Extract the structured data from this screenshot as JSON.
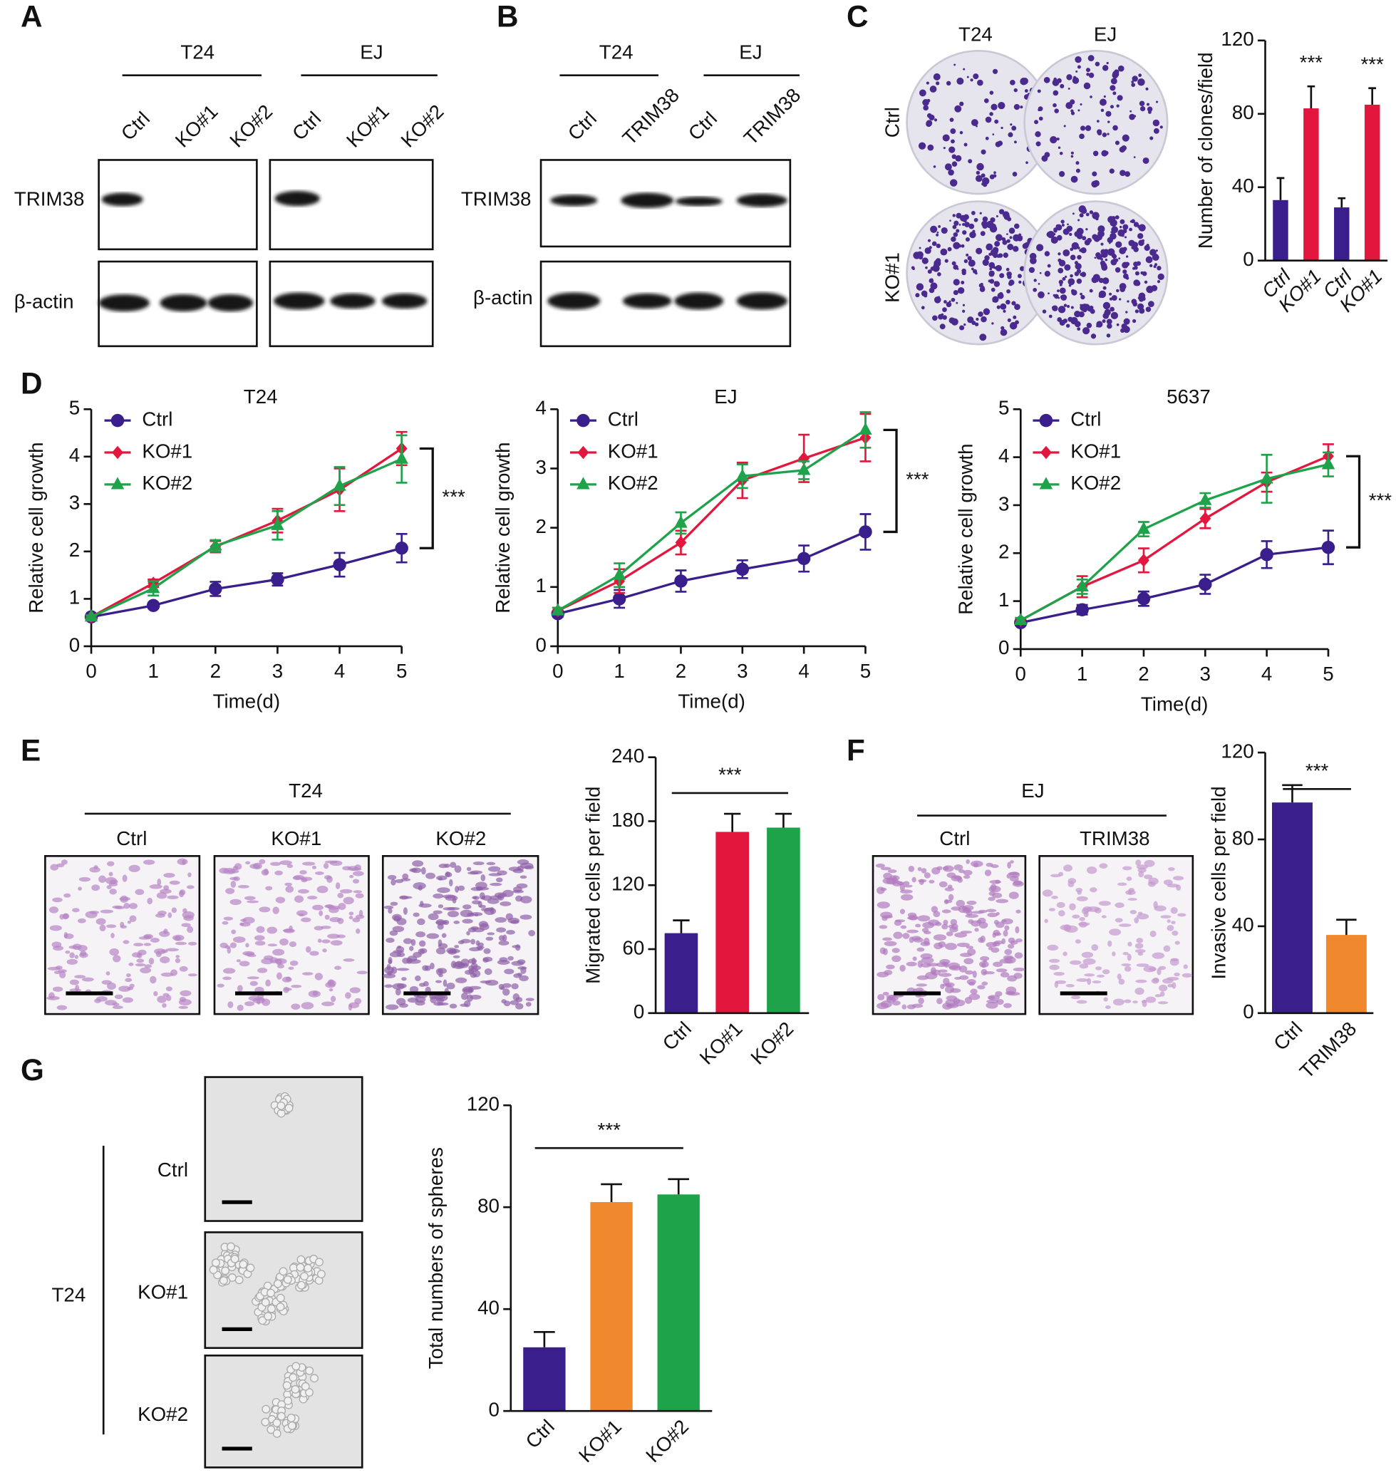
{
  "figure": {
    "letters": [
      "A",
      "B",
      "C",
      "D",
      "E",
      "F",
      "G"
    ],
    "A": {
      "groups": [
        "T24",
        "EJ"
      ],
      "lanes": [
        "Ctrl",
        "KO#1",
        "KO#2",
        "Ctrl",
        "KO#1",
        "KO#2"
      ],
      "rows": [
        "TRIM38",
        "β-actin"
      ]
    },
    "B": {
      "groups": [
        "T24",
        "EJ"
      ],
      "lanes": [
        "Ctrl",
        "TRIM38",
        "Ctrl",
        "TRIM38"
      ],
      "rows": [
        "TRIM38",
        "β-actin"
      ]
    },
    "C": {
      "columns": [
        "T24",
        "EJ"
      ],
      "rows": [
        "Ctrl",
        "KO#1"
      ]
    },
    "E": {
      "group": "T24",
      "columns": [
        "Ctrl",
        "KO#1",
        "KO#2"
      ]
    },
    "F": {
      "group": "EJ",
      "columns": [
        "Ctrl",
        "TRIM38"
      ]
    },
    "G": {
      "group": "T24",
      "rows": [
        "Ctrl",
        "KO#1",
        "KO#2"
      ]
    }
  },
  "chart_data": [
    {
      "type": "bar",
      "ylabel": "Number of clones/field",
      "categories": [
        "Ctrl",
        "KO#1",
        "Ctrl",
        "KO#1"
      ],
      "values": [
        33,
        83,
        29,
        85
      ],
      "errors": [
        12,
        12,
        5,
        9
      ],
      "colors": [
        "#3a1f8c",
        "#e3173d",
        "#3a1f8c",
        "#e3173d"
      ],
      "ylim": [
        0,
        120
      ],
      "yticks": [
        0,
        40,
        80,
        120
      ],
      "annotations": [
        null,
        "***",
        null,
        "***"
      ]
    },
    {
      "type": "line",
      "title": "T24",
      "xlabel": "Time(d)",
      "ylabel": "Relative cell growth",
      "x": [
        0,
        1,
        2,
        3,
        4,
        5
      ],
      "xlim": [
        0,
        5
      ],
      "xticks": [
        0,
        1,
        2,
        3,
        4,
        5
      ],
      "ylim": [
        0,
        5
      ],
      "yticks": [
        0,
        1,
        2,
        3,
        4,
        5
      ],
      "annotation": "***",
      "series": [
        {
          "name": "Ctrl",
          "color": "#3a1f8c",
          "marker": "circle",
          "values": [
            0.62,
            0.86,
            1.21,
            1.41,
            1.72,
            2.07
          ],
          "errors": [
            0.03,
            0.06,
            0.15,
            0.13,
            0.25,
            0.3
          ]
        },
        {
          "name": "KO#1",
          "color": "#e3173d",
          "marker": "diamond",
          "values": [
            0.62,
            1.33,
            2.1,
            2.65,
            3.3,
            4.17
          ],
          "errors": [
            0.03,
            0.08,
            0.12,
            0.25,
            0.45,
            0.35
          ]
        },
        {
          "name": "KO#2",
          "color": "#1fa34a",
          "marker": "triangle",
          "values": [
            0.62,
            1.22,
            2.12,
            2.55,
            3.38,
            3.95
          ],
          "errors": [
            0.03,
            0.15,
            0.12,
            0.3,
            0.4,
            0.5
          ]
        }
      ]
    },
    {
      "type": "line",
      "title": "EJ",
      "xlabel": "Time(d)",
      "ylabel": "Relative cell growth",
      "x": [
        0,
        1,
        2,
        3,
        4,
        5
      ],
      "xlim": [
        0,
        5
      ],
      "xticks": [
        0,
        1,
        2,
        3,
        4,
        5
      ],
      "ylim": [
        0,
        4
      ],
      "yticks": [
        0,
        1,
        2,
        3,
        4
      ],
      "annotation": "***",
      "series": [
        {
          "name": "Ctrl",
          "color": "#3a1f8c",
          "marker": "circle",
          "values": [
            0.55,
            0.8,
            1.1,
            1.3,
            1.48,
            1.93
          ],
          "errors": [
            0.05,
            0.15,
            0.18,
            0.15,
            0.22,
            0.3
          ]
        },
        {
          "name": "KO#1",
          "color": "#e3173d",
          "marker": "diamond",
          "values": [
            0.6,
            1.1,
            1.75,
            2.8,
            3.17,
            3.52
          ],
          "errors": [
            0.05,
            0.2,
            0.2,
            0.3,
            0.4,
            0.4
          ]
        },
        {
          "name": "KO#2",
          "color": "#1fa34a",
          "marker": "triangle",
          "values": [
            0.6,
            1.2,
            2.08,
            2.87,
            2.97,
            3.65
          ],
          "errors": [
            0.05,
            0.2,
            0.18,
            0.2,
            0.15,
            0.3
          ]
        }
      ]
    },
    {
      "type": "line",
      "title": "5637",
      "xlabel": "Time(d)",
      "ylabel": "Relative cell growth",
      "x": [
        0,
        1,
        2,
        3,
        4,
        5
      ],
      "xlim": [
        0,
        5
      ],
      "xticks": [
        0,
        1,
        2,
        3,
        4,
        5
      ],
      "ylim": [
        0,
        5
      ],
      "yticks": [
        0,
        1,
        2,
        3,
        4,
        5
      ],
      "annotation": "***",
      "series": [
        {
          "name": "Ctrl",
          "color": "#3a1f8c",
          "marker": "circle",
          "values": [
            0.55,
            0.82,
            1.05,
            1.35,
            1.97,
            2.12
          ],
          "errors": [
            0.05,
            0.1,
            0.15,
            0.2,
            0.28,
            0.35
          ]
        },
        {
          "name": "KO#1",
          "color": "#e3173d",
          "marker": "diamond",
          "values": [
            0.6,
            1.3,
            1.85,
            2.72,
            3.48,
            4.02
          ],
          "errors": [
            0.05,
            0.22,
            0.25,
            0.2,
            0.2,
            0.25
          ]
        },
        {
          "name": "KO#2",
          "color": "#1fa34a",
          "marker": "triangle",
          "values": [
            0.6,
            1.3,
            2.5,
            3.1,
            3.55,
            3.85
          ],
          "errors": [
            0.05,
            0.15,
            0.15,
            0.15,
            0.5,
            0.25
          ]
        }
      ]
    },
    {
      "type": "bar",
      "ylabel": "Migrated cells per field",
      "categories": [
        "Ctrl",
        "KO#1",
        "KO#2"
      ],
      "values": [
        75,
        170,
        174
      ],
      "errors": [
        12,
        17,
        13
      ],
      "colors": [
        "#3a1f8c",
        "#e3173d",
        "#1fa34a"
      ],
      "ylim": [
        0,
        240
      ],
      "yticks": [
        0,
        60,
        120,
        180,
        240
      ],
      "annotation": "***"
    },
    {
      "type": "bar",
      "ylabel": "Invasive cells per field",
      "categories": [
        "Ctrl",
        "TRIM38"
      ],
      "values": [
        97,
        36
      ],
      "errors": [
        8,
        7
      ],
      "colors": [
        "#3a1f8c",
        "#f0882d"
      ],
      "ylim": [
        0,
        120
      ],
      "yticks": [
        0,
        40,
        80,
        120
      ],
      "annotation": "***"
    },
    {
      "type": "bar",
      "ylabel": "Total numbers of spheres",
      "categories": [
        "Ctrl",
        "KO#1",
        "KO#2"
      ],
      "values": [
        25,
        82,
        85
      ],
      "errors": [
        6,
        7,
        6
      ],
      "colors": [
        "#3a1f8c",
        "#f0882d",
        "#1fa34a"
      ],
      "ylim": [
        0,
        120
      ],
      "yticks": [
        0,
        40,
        80,
        120
      ],
      "annotation": "***"
    }
  ]
}
